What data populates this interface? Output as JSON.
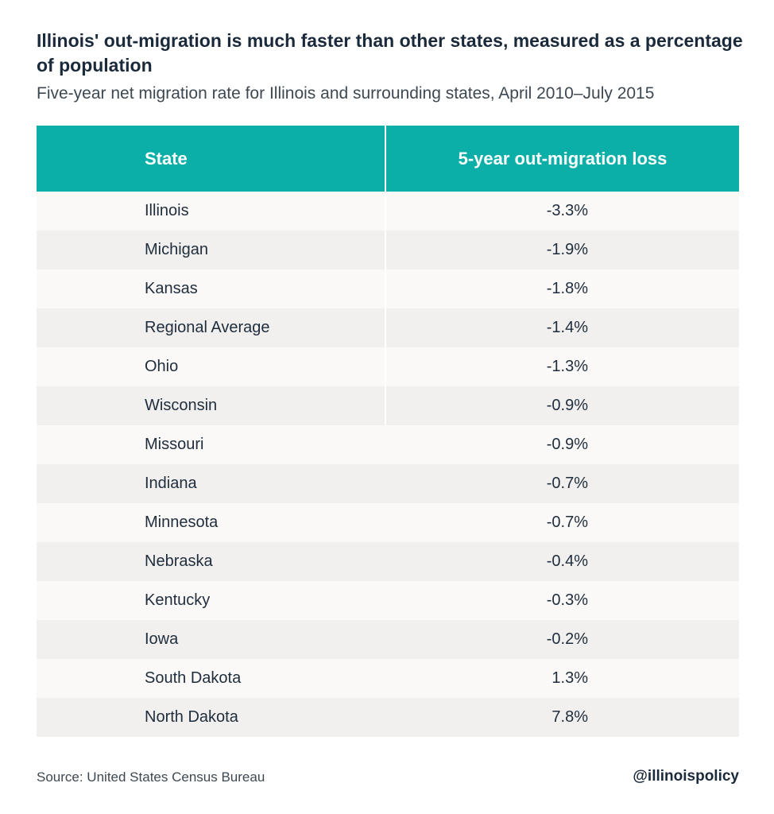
{
  "title": "Illinois' out-migration is much faster than other states, measured as a percentage of population",
  "subtitle": "Five-year net migration rate for Illinois and surrounding states, April 2010–July 2015",
  "table": {
    "headers": [
      "State",
      "5-year out-migration loss"
    ]
  },
  "colors": {
    "header_background": "#0cafa8",
    "header_text": "#ffffff",
    "row_light": "#faf9f7",
    "row_dark": "#f1f0ee"
  },
  "chart_data": {
    "type": "table",
    "columns": [
      "State",
      "5-year out-migration loss"
    ],
    "rows": [
      {
        "state": "Illinois",
        "value": "-3.3%"
      },
      {
        "state": "Michigan",
        "value": "-1.9%"
      },
      {
        "state": "Kansas",
        "value": "-1.8%"
      },
      {
        "state": "Regional Average",
        "value": "-1.4%"
      },
      {
        "state": "Ohio",
        "value": "-1.3%"
      },
      {
        "state": "Wisconsin",
        "value": "-0.9%"
      },
      {
        "state": "Missouri",
        "value": "-0.9%"
      },
      {
        "state": "Indiana",
        "value": "-0.7%"
      },
      {
        "state": "Minnesota",
        "value": "-0.7%"
      },
      {
        "state": "Nebraska",
        "value": "-0.4%"
      },
      {
        "state": "Kentucky",
        "value": "-0.3%"
      },
      {
        "state": "Iowa",
        "value": "-0.2%"
      },
      {
        "state": "South Dakota",
        "value": "1.3%"
      },
      {
        "state": "North Dakota",
        "value": "7.8%"
      }
    ]
  },
  "footer": {
    "source": "Source: United States Census Bureau",
    "handle": "@illinoispolicy"
  }
}
